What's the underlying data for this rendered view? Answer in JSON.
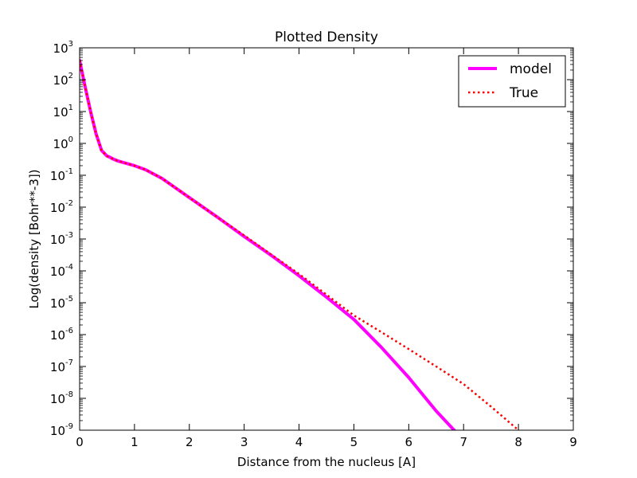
{
  "chart_data": {
    "type": "line",
    "title": "Plotted Density",
    "xlabel": "Distance from the nucleus [A]",
    "ylabel": "Log(density [Bohr**-3])",
    "xlim": [
      0,
      9
    ],
    "ylim": [
      1e-09,
      1000
    ],
    "yscale": "log",
    "grid": false,
    "legend_position": "top-right",
    "x_ticks": [
      "0",
      "1",
      "2",
      "3",
      "4",
      "5",
      "6",
      "7",
      "8",
      "9"
    ],
    "y_ticks": [
      {
        "base": "10",
        "exp": "3"
      },
      {
        "base": "10",
        "exp": "2"
      },
      {
        "base": "10",
        "exp": "1"
      },
      {
        "base": "10",
        "exp": "0"
      },
      {
        "base": "10",
        "exp": "-1"
      },
      {
        "base": "10",
        "exp": "-2"
      },
      {
        "base": "10",
        "exp": "-3"
      },
      {
        "base": "10",
        "exp": "-4"
      },
      {
        "base": "10",
        "exp": "-5"
      },
      {
        "base": "10",
        "exp": "-6"
      },
      {
        "base": "10",
        "exp": "-7"
      },
      {
        "base": "10",
        "exp": "-8"
      },
      {
        "base": "10",
        "exp": "-9"
      }
    ],
    "series": [
      {
        "name": "model",
        "color": "#ff00ff",
        "style": "solid",
        "x": [
          0.0,
          0.1,
          0.2,
          0.3,
          0.4,
          0.5,
          0.55,
          0.6,
          0.7,
          0.8,
          1.0,
          1.2,
          1.5,
          2.0,
          2.5,
          3.0,
          3.5,
          4.0,
          4.5,
          5.0,
          5.5,
          6.0,
          6.5,
          6.88
        ],
        "y": [
          400,
          60,
          10,
          2.0,
          0.6,
          0.4,
          0.37,
          0.33,
          0.28,
          0.25,
          0.2,
          0.15,
          0.08,
          0.02,
          0.005,
          0.0012,
          0.0003,
          7e-05,
          1.5e-05,
          3e-06,
          4e-07,
          4.5e-08,
          4e-09,
          8e-10
        ]
      },
      {
        "name": "True",
        "color": "#ff0000",
        "style": "dotted",
        "x": [
          0.0,
          0.1,
          0.2,
          0.3,
          0.4,
          0.5,
          0.55,
          0.6,
          0.7,
          0.8,
          1.0,
          1.2,
          1.5,
          2.0,
          2.5,
          3.0,
          3.5,
          4.0,
          4.5,
          5.0,
          5.5,
          6.0,
          6.5,
          7.0,
          7.5,
          8.0
        ],
        "y": [
          400,
          60,
          10,
          2.0,
          0.6,
          0.4,
          0.37,
          0.33,
          0.28,
          0.25,
          0.2,
          0.15,
          0.08,
          0.02,
          0.005,
          0.0013,
          0.00032,
          8e-05,
          1.8e-05,
          4e-06,
          1.2e-06,
          3.5e-07,
          1e-07,
          2.8e-08,
          5.5e-09,
          1e-09
        ]
      }
    ]
  }
}
